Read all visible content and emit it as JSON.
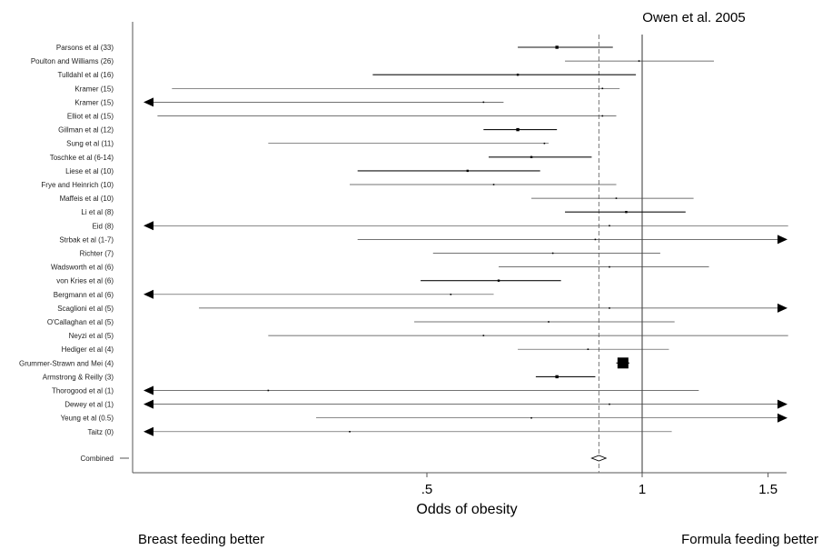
{
  "chart_data": {
    "type": "forest",
    "top_annotation": "Owen et al. 2005",
    "xlabel": "Odds of obesity",
    "x_scale": "log",
    "xlim": [
      0.25,
      1.6
    ],
    "x_ticks": [
      {
        "value": 0.5,
        "label": ".5"
      },
      {
        "value": 1.0,
        "label": "1"
      },
      {
        "value": 1.5,
        "label": "1.5"
      }
    ],
    "reference_line": 1.0,
    "combined_line": 0.87,
    "left_annotation": "Breast feeding better",
    "right_annotation": "Formula feeding better",
    "studies": [
      {
        "label": "Parsons et al (33)",
        "or": 0.76,
        "lo": 0.67,
        "hi": 0.91,
        "weight": 3,
        "arrow_left": false,
        "arrow_right": false
      },
      {
        "label": "Poulton and Williams (26)",
        "or": 0.99,
        "lo": 0.78,
        "hi": 1.26,
        "weight": 1,
        "arrow_left": false,
        "arrow_right": false
      },
      {
        "label": "Tulldahl et al (16)",
        "or": 0.67,
        "lo": 0.42,
        "hi": 0.98,
        "weight": 2,
        "arrow_left": false,
        "arrow_right": false
      },
      {
        "label": "Kramer (15)",
        "or": 0.88,
        "lo": 0.22,
        "hi": 0.93,
        "weight": 1,
        "arrow_left": false,
        "arrow_right": false
      },
      {
        "label": "Kramer (15)",
        "or": 0.6,
        "lo": 0.2,
        "hi": 0.64,
        "weight": 1,
        "arrow_left": true,
        "arrow_right": false
      },
      {
        "label": "Elliot et al (15)",
        "or": 0.88,
        "lo": 0.21,
        "hi": 0.92,
        "weight": 1,
        "arrow_left": false,
        "arrow_right": false
      },
      {
        "label": "Gillman et al (12)",
        "or": 0.67,
        "lo": 0.6,
        "hi": 0.76,
        "weight": 3,
        "arrow_left": false,
        "arrow_right": false
      },
      {
        "label": "Sung et al (11)",
        "or": 0.73,
        "lo": 0.3,
        "hi": 0.74,
        "weight": 1,
        "arrow_left": false,
        "arrow_right": false
      },
      {
        "label": "Toschke et al (6-14)",
        "or": 0.7,
        "lo": 0.61,
        "hi": 0.85,
        "weight": 2,
        "arrow_left": false,
        "arrow_right": false
      },
      {
        "label": "Liese et al (10)",
        "or": 0.57,
        "lo": 0.4,
        "hi": 0.72,
        "weight": 2,
        "arrow_left": false,
        "arrow_right": false
      },
      {
        "label": "Frye and Heinrich (10)",
        "or": 0.62,
        "lo": 0.39,
        "hi": 0.92,
        "weight": 1,
        "arrow_left": false,
        "arrow_right": false
      },
      {
        "label": "Maffeis et al (10)",
        "or": 0.92,
        "lo": 0.7,
        "hi": 1.18,
        "weight": 1,
        "arrow_left": false,
        "arrow_right": false
      },
      {
        "label": "Li et al (8)",
        "or": 0.95,
        "lo": 0.78,
        "hi": 1.15,
        "weight": 2,
        "arrow_left": false,
        "arrow_right": false
      },
      {
        "label": "Eid (8)",
        "or": 0.9,
        "lo": 0.21,
        "hi": 1.6,
        "weight": 1,
        "arrow_left": true,
        "arrow_right": false
      },
      {
        "label": "Strbak et al (1-7)",
        "or": 0.86,
        "lo": 0.4,
        "hi": 1.6,
        "weight": 1,
        "arrow_left": false,
        "arrow_right": true
      },
      {
        "label": "Richter (7)",
        "or": 0.75,
        "lo": 0.51,
        "hi": 1.06,
        "weight": 1,
        "arrow_left": false,
        "arrow_right": false
      },
      {
        "label": "Wadsworth et al (6)",
        "or": 0.9,
        "lo": 0.63,
        "hi": 1.24,
        "weight": 1,
        "arrow_left": false,
        "arrow_right": false
      },
      {
        "label": "von Kries et al (6)",
        "or": 0.63,
        "lo": 0.49,
        "hi": 0.77,
        "weight": 2,
        "arrow_left": false,
        "arrow_right": false
      },
      {
        "label": "Bergmann et al (6)",
        "or": 0.54,
        "lo": 0.21,
        "hi": 0.62,
        "weight": 1,
        "arrow_left": true,
        "arrow_right": false
      },
      {
        "label": "Scaglioni et al (5)",
        "or": 0.9,
        "lo": 0.24,
        "hi": 1.6,
        "weight": 1,
        "arrow_left": false,
        "arrow_right": true
      },
      {
        "label": "O'Callaghan et al (5)",
        "or": 0.74,
        "lo": 0.48,
        "hi": 1.11,
        "weight": 1,
        "arrow_left": false,
        "arrow_right": false
      },
      {
        "label": "Neyzi et al (5)",
        "or": 0.6,
        "lo": 0.3,
        "hi": 1.6,
        "weight": 1,
        "arrow_left": false,
        "arrow_right": false
      },
      {
        "label": "Hediger et al (4)",
        "or": 0.84,
        "lo": 0.67,
        "hi": 1.09,
        "weight": 1,
        "arrow_left": false,
        "arrow_right": false
      },
      {
        "label": "Grummer-Strawn and Mei (4)",
        "or": 0.94,
        "lo": 0.92,
        "hi": 0.96,
        "weight": 5,
        "arrow_left": false,
        "arrow_right": false
      },
      {
        "label": "Armstrong & Reilly (3)",
        "or": 0.76,
        "lo": 0.71,
        "hi": 0.86,
        "weight": 3,
        "arrow_left": false,
        "arrow_right": false
      },
      {
        "label": "Thorogood et al (1)",
        "or": 0.3,
        "lo": 0.21,
        "hi": 1.2,
        "weight": 1,
        "arrow_left": true,
        "arrow_right": false
      },
      {
        "label": "Dewey et al (1)",
        "or": 0.9,
        "lo": 0.21,
        "hi": 1.6,
        "weight": 1,
        "arrow_left": true,
        "arrow_right": true
      },
      {
        "label": "Yeung et al (0.5)",
        "or": 0.7,
        "lo": 0.35,
        "hi": 1.6,
        "weight": 1,
        "arrow_left": false,
        "arrow_right": true
      },
      {
        "label": "Taitz (0)",
        "or": 0.39,
        "lo": 0.21,
        "hi": 1.1,
        "weight": 1,
        "arrow_left": true,
        "arrow_right": false
      }
    ],
    "combined": {
      "label": "Combined",
      "or": 0.87,
      "lo": 0.85,
      "hi": 0.89
    }
  }
}
